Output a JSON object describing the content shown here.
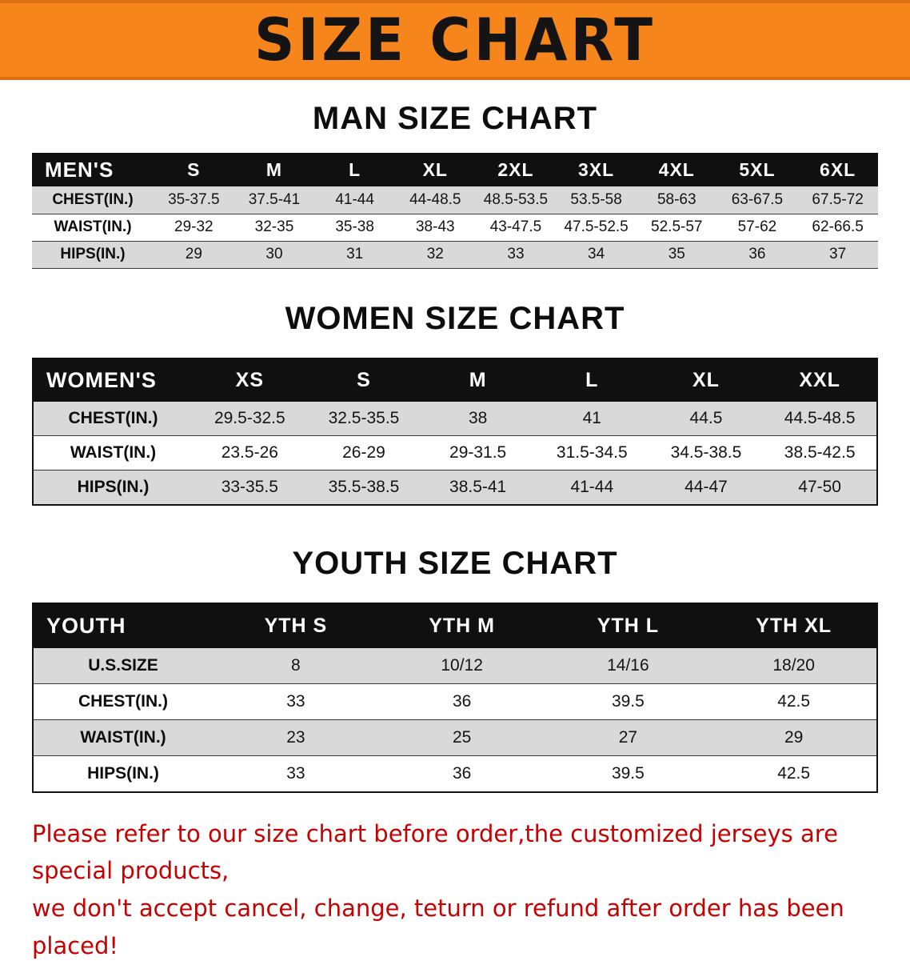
{
  "banner": {
    "title": "SIZE CHART"
  },
  "chart_data": [
    {
      "type": "table",
      "title": "MAN SIZE CHART",
      "header": [
        "MEN'S",
        "S",
        "M",
        "L",
        "XL",
        "2XL",
        "3XL",
        "4XL",
        "5XL",
        "6XL"
      ],
      "rows": [
        [
          "CHEST(IN.)",
          "35-37.5",
          "37.5-41",
          "41-44",
          "44-48.5",
          "48.5-53.5",
          "53.5-58",
          "58-63",
          "63-67.5",
          "67.5-72"
        ],
        [
          "WAIST(IN.)",
          "29-32",
          "32-35",
          "35-38",
          "38-43",
          "43-47.5",
          "47.5-52.5",
          "52.5-57",
          "57-62",
          "62-66.5"
        ],
        [
          "HIPS(IN.)",
          "29",
          "30",
          "31",
          "32",
          "33",
          "34",
          "35",
          "36",
          "37"
        ]
      ]
    },
    {
      "type": "table",
      "title": "WOMEN SIZE CHART",
      "header": [
        "WOMEN'S",
        "XS",
        "S",
        "M",
        "L",
        "XL",
        "XXL"
      ],
      "rows": [
        [
          "CHEST(IN.)",
          "29.5-32.5",
          "32.5-35.5",
          "38",
          "41",
          "44.5",
          "44.5-48.5"
        ],
        [
          "WAIST(IN.)",
          "23.5-26",
          "26-29",
          "29-31.5",
          "31.5-34.5",
          "34.5-38.5",
          "38.5-42.5"
        ],
        [
          "HIPS(IN.)",
          "33-35.5",
          "35.5-38.5",
          "38.5-41",
          "41-44",
          "44-47",
          "47-50"
        ]
      ]
    },
    {
      "type": "table",
      "title": "YOUTH SIZE CHART",
      "header": [
        "YOUTH",
        "YTH S",
        "YTH M",
        "YTH L",
        "YTH XL"
      ],
      "rows": [
        [
          "U.S.SIZE",
          "8",
          "10/12",
          "14/16",
          "18/20"
        ],
        [
          "CHEST(IN.)",
          "33",
          "36",
          "39.5",
          "42.5"
        ],
        [
          "WAIST(IN.)",
          "23",
          "25",
          "27",
          "29"
        ],
        [
          "HIPS(IN.)",
          "33",
          "36",
          "39.5",
          "42.5"
        ]
      ]
    }
  ],
  "footer": {
    "line1": "Please refer to our size chart before order,the customized jerseys are special products,",
    "line2": "we don't accept cancel, change, teturn or refund after order has been placed!"
  },
  "colors": {
    "banner_bg": "#f6851c",
    "banner_edge": "#dd700f",
    "table_header_bg": "#101010",
    "row_stripe": "#d9d9d9",
    "notice_text": "#c70000"
  }
}
